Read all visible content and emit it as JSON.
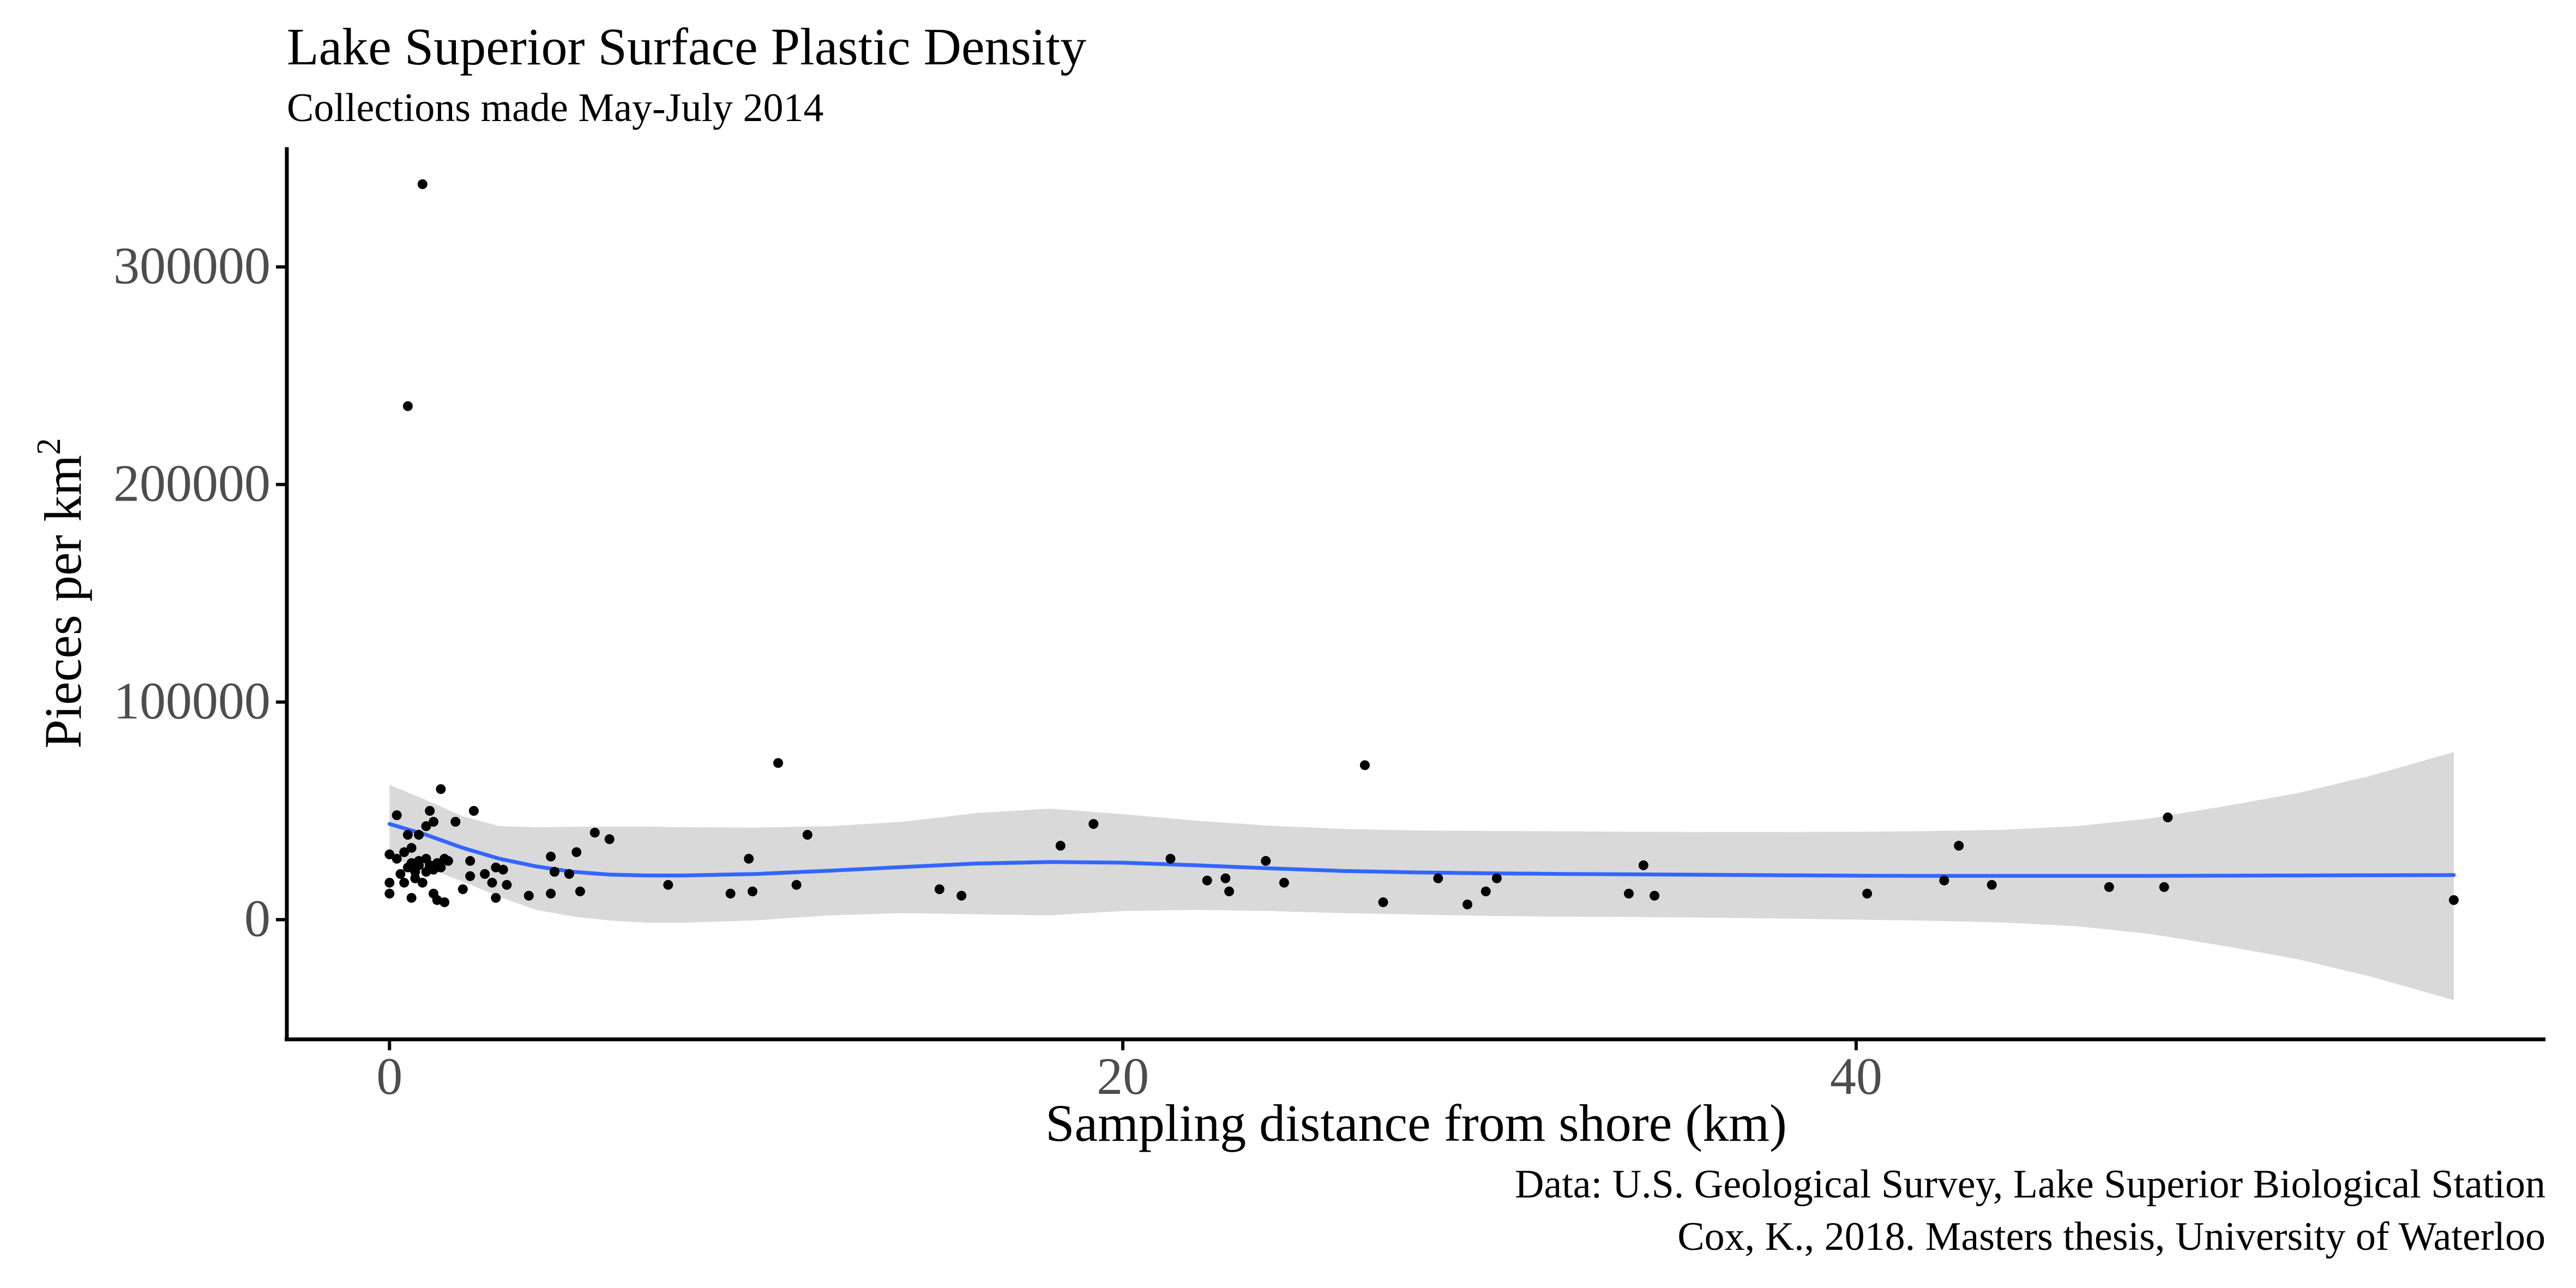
{
  "chart_data": {
    "type": "scatter",
    "title": "Lake Superior Surface Plastic Density",
    "subtitle": "Collections made May-July 2014",
    "xlabel": "Sampling distance from shore (km)",
    "ylabel_main": "Pieces per km",
    "ylabel_superscript": "2",
    "caption": [
      "Data: U.S. Geological Survey, Lake Superior Biological Station",
      "Cox, K., 2018. Masters thesis, University of Waterloo"
    ],
    "xlim": [
      -2.8,
      58.8
    ],
    "ylim": [
      -55000,
      355000
    ],
    "x_ticks": [
      {
        "value": 0,
        "label": "0"
      },
      {
        "value": 20,
        "label": "20"
      },
      {
        "value": 40,
        "label": "40"
      }
    ],
    "y_ticks": [
      {
        "value": 0,
        "label": "0"
      },
      {
        "value": 100000,
        "label": "100000"
      },
      {
        "value": 200000,
        "label": "200000"
      },
      {
        "value": 300000,
        "label": "300000"
      }
    ],
    "grid": false,
    "legend": "none",
    "colors": {
      "points": "#000000",
      "smooth_line": "#3366FF",
      "confidence_band": "#D9D9D9",
      "axis": "#000000",
      "tick_label": "#4D4D4D",
      "text": "#000000"
    },
    "points": [
      {
        "x": 0.0,
        "y": 17000
      },
      {
        "x": 0.0,
        "y": 12000
      },
      {
        "x": 0.0,
        "y": 30000
      },
      {
        "x": 0.2,
        "y": 48000
      },
      {
        "x": 0.2,
        "y": 28000
      },
      {
        "x": 0.3,
        "y": 21000
      },
      {
        "x": 0.4,
        "y": 31000
      },
      {
        "x": 0.4,
        "y": 17000
      },
      {
        "x": 0.5,
        "y": 24000
      },
      {
        "x": 0.5,
        "y": 39000
      },
      {
        "x": 0.5,
        "y": 236000
      },
      {
        "x": 0.6,
        "y": 10000
      },
      {
        "x": 0.6,
        "y": 26000
      },
      {
        "x": 0.6,
        "y": 33000
      },
      {
        "x": 0.7,
        "y": 22000
      },
      {
        "x": 0.7,
        "y": 19000
      },
      {
        "x": 0.8,
        "y": 25000
      },
      {
        "x": 0.8,
        "y": 39000
      },
      {
        "x": 0.8,
        "y": 27000
      },
      {
        "x": 0.9,
        "y": 17000
      },
      {
        "x": 0.9,
        "y": 338000
      },
      {
        "x": 1.0,
        "y": 22000
      },
      {
        "x": 1.0,
        "y": 28000
      },
      {
        "x": 1.0,
        "y": 43000
      },
      {
        "x": 1.1,
        "y": 50000
      },
      {
        "x": 1.1,
        "y": 25000
      },
      {
        "x": 1.2,
        "y": 23000
      },
      {
        "x": 1.2,
        "y": 12000
      },
      {
        "x": 1.2,
        "y": 45000
      },
      {
        "x": 1.3,
        "y": 9000
      },
      {
        "x": 1.3,
        "y": 26000
      },
      {
        "x": 1.4,
        "y": 24000
      },
      {
        "x": 1.4,
        "y": 60000
      },
      {
        "x": 1.5,
        "y": 8000
      },
      {
        "x": 1.5,
        "y": 28000
      },
      {
        "x": 1.6,
        "y": 27000
      },
      {
        "x": 1.8,
        "y": 45000
      },
      {
        "x": 2.0,
        "y": 14000
      },
      {
        "x": 2.2,
        "y": 27000
      },
      {
        "x": 2.2,
        "y": 20000
      },
      {
        "x": 2.3,
        "y": 50000
      },
      {
        "x": 2.6,
        "y": 21000
      },
      {
        "x": 2.8,
        "y": 17000
      },
      {
        "x": 2.9,
        "y": 24000
      },
      {
        "x": 2.9,
        "y": 10000
      },
      {
        "x": 3.1,
        "y": 23000
      },
      {
        "x": 3.2,
        "y": 16000
      },
      {
        "x": 3.8,
        "y": 11000
      },
      {
        "x": 4.4,
        "y": 29000
      },
      {
        "x": 4.4,
        "y": 12000
      },
      {
        "x": 4.5,
        "y": 22000
      },
      {
        "x": 4.9,
        "y": 21000
      },
      {
        "x": 5.1,
        "y": 31000
      },
      {
        "x": 5.2,
        "y": 13000
      },
      {
        "x": 5.6,
        "y": 40000
      },
      {
        "x": 6.0,
        "y": 37000
      },
      {
        "x": 7.6,
        "y": 16000
      },
      {
        "x": 9.3,
        "y": 12000
      },
      {
        "x": 9.8,
        "y": 28000
      },
      {
        "x": 9.9,
        "y": 13000
      },
      {
        "x": 10.6,
        "y": 72000
      },
      {
        "x": 11.1,
        "y": 16000
      },
      {
        "x": 11.4,
        "y": 39000
      },
      {
        "x": 15.0,
        "y": 14000
      },
      {
        "x": 15.6,
        "y": 11000
      },
      {
        "x": 18.3,
        "y": 34000
      },
      {
        "x": 19.2,
        "y": 44000
      },
      {
        "x": 21.3,
        "y": 28000
      },
      {
        "x": 22.3,
        "y": 18000
      },
      {
        "x": 22.8,
        "y": 19000
      },
      {
        "x": 22.9,
        "y": 13000
      },
      {
        "x": 23.9,
        "y": 27000
      },
      {
        "x": 24.4,
        "y": 17000
      },
      {
        "x": 26.6,
        "y": 71000
      },
      {
        "x": 27.1,
        "y": 8000
      },
      {
        "x": 28.6,
        "y": 19000
      },
      {
        "x": 29.4,
        "y": 7000
      },
      {
        "x": 29.9,
        "y": 13000
      },
      {
        "x": 30.2,
        "y": 19000
      },
      {
        "x": 33.8,
        "y": 12000
      },
      {
        "x": 34.2,
        "y": 25000
      },
      {
        "x": 34.5,
        "y": 11000
      },
      {
        "x": 40.3,
        "y": 12000
      },
      {
        "x": 42.4,
        "y": 18000
      },
      {
        "x": 42.8,
        "y": 34000
      },
      {
        "x": 43.7,
        "y": 16000
      },
      {
        "x": 46.9,
        "y": 15000
      },
      {
        "x": 48.4,
        "y": 15000
      },
      {
        "x": 48.5,
        "y": 47000
      },
      {
        "x": 56.3,
        "y": 9000
      }
    ],
    "smooth": {
      "x": [
        0,
        1,
        2,
        3,
        4,
        5,
        6,
        7,
        8,
        10,
        12,
        14,
        16,
        18,
        20,
        22,
        24,
        26,
        28,
        30,
        32,
        34,
        36,
        38,
        40,
        42,
        44,
        46,
        48,
        50,
        52,
        54,
        56.3
      ],
      "y": [
        44000,
        39000,
        33000,
        28000,
        24500,
        22000,
        20700,
        20300,
        20300,
        21000,
        22500,
        24200,
        25800,
        26500,
        26200,
        25000,
        23600,
        22400,
        21700,
        21300,
        21000,
        20800,
        20600,
        20400,
        20200,
        20100,
        20100,
        20100,
        20100,
        20200,
        20300,
        20400,
        20500
      ],
      "upper": [
        62000,
        55000,
        47500,
        43000,
        42500,
        42700,
        42800,
        42800,
        42500,
        42300,
        43000,
        45000,
        49000,
        51000,
        48500,
        45500,
        43200,
        41700,
        41000,
        40800,
        40600,
        40400,
        40300,
        40300,
        40400,
        40700,
        41300,
        43000,
        46500,
        52000,
        58000,
        66000,
        77000
      ],
      "lower": [
        28000,
        24000,
        17500,
        10500,
        4500,
        1500,
        -400,
        -1400,
        -1400,
        -300,
        2000,
        3000,
        2500,
        2000,
        4000,
        4500,
        4000,
        3000,
        2400,
        1700,
        1400,
        1200,
        900,
        500,
        0,
        -500,
        -1300,
        -3000,
        -6500,
        -12000,
        -18000,
        -26000,
        -37000
      ]
    }
  }
}
